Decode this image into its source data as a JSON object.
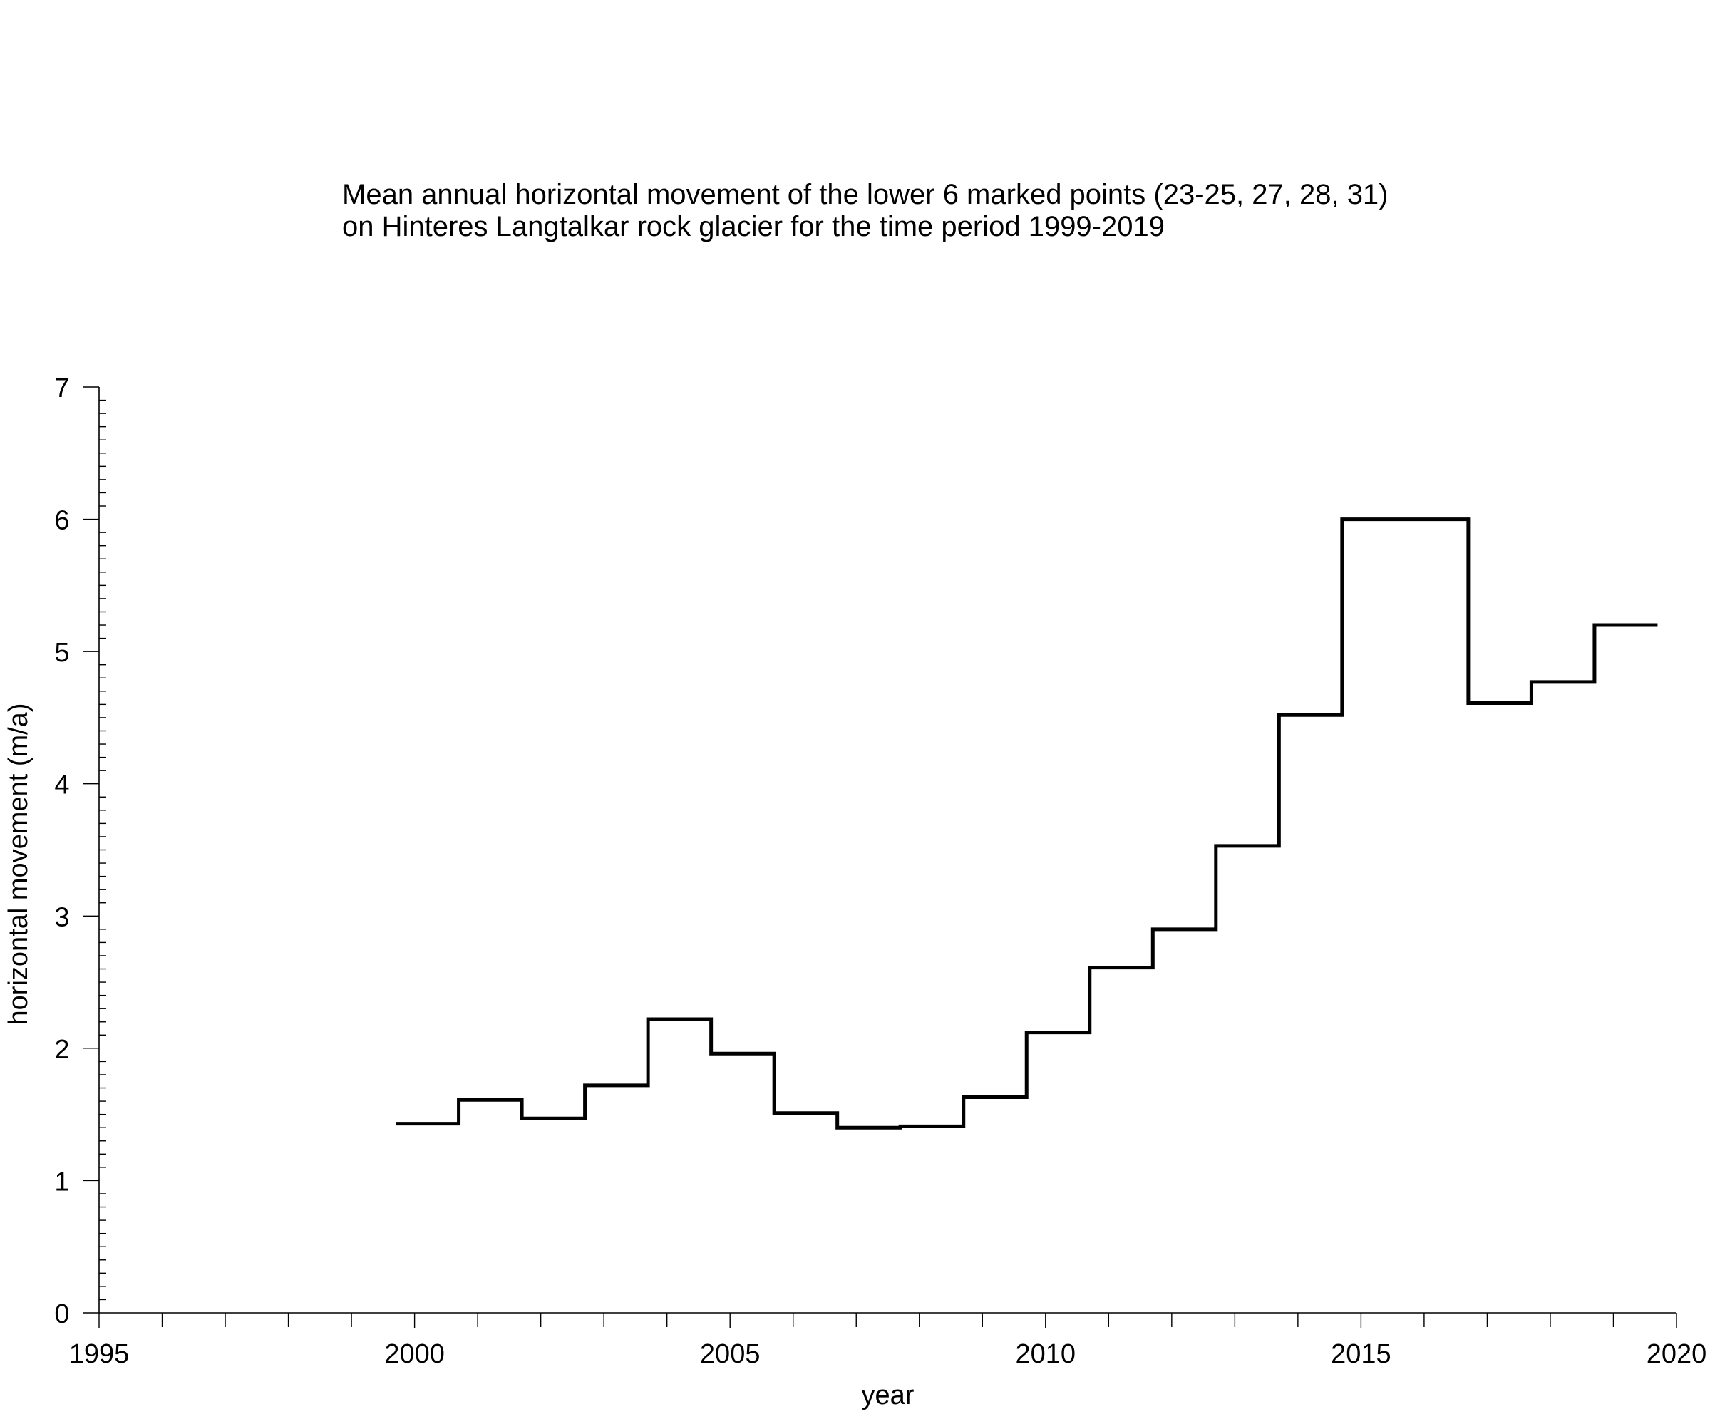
{
  "chart_data": {
    "type": "line",
    "style": "step",
    "title_lines": [
      "Mean annual horizontal movement of the lower 6 marked points (23-25, 27, 28, 31)",
      "on Hinteres Langtalkar rock glacier for the time period 1999-2019"
    ],
    "xlabel": "year",
    "ylabel": "horizontal movement (m/a)",
    "xlim": [
      1995,
      2020
    ],
    "ylim": [
      0,
      7
    ],
    "x_ticks": [
      "1995",
      "2000",
      "2005",
      "2010",
      "2015",
      "2020"
    ],
    "y_ticks": [
      "0",
      "1",
      "2",
      "3",
      "4",
      "5",
      "6",
      "7"
    ],
    "grid": false,
    "line_color": "#000000",
    "series": [
      {
        "segments": [
          {
            "x_start": 1999.7,
            "x_end": 2000.7,
            "value": 1.43
          },
          {
            "x_start": 2000.7,
            "x_end": 2001.7,
            "value": 1.61
          },
          {
            "x_start": 2001.7,
            "x_end": 2002.7,
            "value": 1.47
          },
          {
            "x_start": 2002.7,
            "x_end": 2003.7,
            "value": 1.72
          },
          {
            "x_start": 2003.7,
            "x_end": 2004.7,
            "value": 2.22
          },
          {
            "x_start": 2004.7,
            "x_end": 2005.7,
            "value": 1.96
          },
          {
            "x_start": 2005.7,
            "x_end": 2006.7,
            "value": 1.51
          },
          {
            "x_start": 2006.7,
            "x_end": 2007.7,
            "value": 1.4
          },
          {
            "x_start": 2007.7,
            "x_end": 2008.7,
            "value": 1.41
          },
          {
            "x_start": 2008.7,
            "x_end": 2009.7,
            "value": 1.63
          },
          {
            "x_start": 2009.7,
            "x_end": 2010.7,
            "value": 2.12
          },
          {
            "x_start": 2010.7,
            "x_end": 2011.7,
            "value": 2.61
          },
          {
            "x_start": 2011.7,
            "x_end": 2012.7,
            "value": 2.9
          },
          {
            "x_start": 2012.7,
            "x_end": 2013.7,
            "value": 3.53
          },
          {
            "x_start": 2013.7,
            "x_end": 2014.7,
            "value": 4.52
          },
          {
            "x_start": 2014.7,
            "x_end": 2015.7,
            "value": 6.0
          },
          {
            "x_start": 2015.7,
            "x_end": 2016.7,
            "value": 6.0
          },
          {
            "x_start": 2016.7,
            "x_end": 2017.7,
            "value": 4.61
          },
          {
            "x_start": 2017.7,
            "x_end": 2018.7,
            "value": 4.77
          },
          {
            "x_start": 2018.7,
            "x_end": 2019.7,
            "value": 5.2
          }
        ]
      }
    ]
  }
}
